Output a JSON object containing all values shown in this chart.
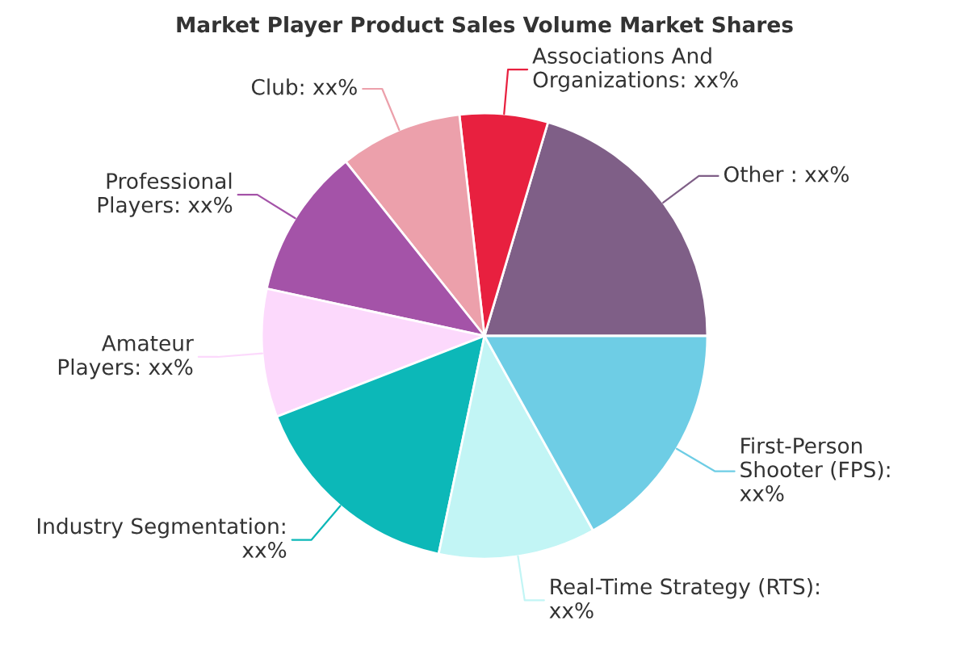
{
  "chart_data": {
    "type": "pie",
    "title": "Market Player Product Sales Volume Market Shares",
    "categories": [
      "Other : xx%",
      "Associations And\nOrganizations: xx%",
      "Club: xx%",
      "Professional\nPlayers: xx%",
      "Amateur\nPlayers: xx%",
      "Industry Segmentation:\nxx%",
      "Real-Time Strategy (RTS):\nxx%",
      "First-Person\nShooter (FPS):\nxx%"
    ],
    "values": [
      20.4,
      6.4,
      8.9,
      10.9,
      9.3,
      15.8,
      11.4,
      16.9
    ],
    "colors": [
      "#7f5f87",
      "#e8203f",
      "#eca0ab",
      "#a453a8",
      "#fcd9fc",
      "#0cb8b8",
      "#c2f5f5",
      "#6ecde5"
    ]
  }
}
